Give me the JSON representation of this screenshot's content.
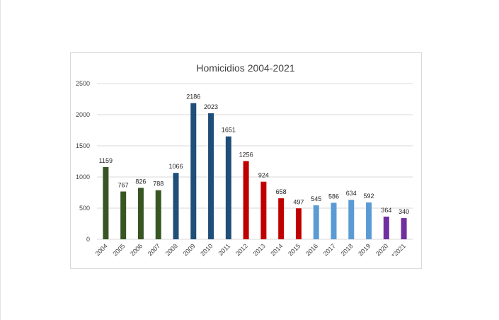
{
  "chart_data": {
    "type": "bar",
    "title": "Homicidios 2004-2021",
    "xlabel": "",
    "ylabel": "",
    "ylim": [
      0,
      2500
    ],
    "yticks": [
      0,
      500,
      1000,
      1500,
      2000,
      2500
    ],
    "grid": true,
    "legend": "none",
    "categories": [
      "2004",
      "2005",
      "2006",
      "2007",
      "2008",
      "2009",
      "2010",
      "2011",
      "2012",
      "2013",
      "2014",
      "2015",
      "2016",
      "2017",
      "2018",
      "2019",
      "2020",
      "*2021"
    ],
    "values": [
      1159,
      767,
      826,
      788,
      1066,
      2186,
      2023,
      1651,
      1256,
      924,
      658,
      497,
      545,
      586,
      634,
      592,
      364,
      340
    ],
    "bar_colors": [
      "#375623",
      "#375623",
      "#375623",
      "#375623",
      "#1f4e79",
      "#1f4e79",
      "#1f4e79",
      "#1f4e79",
      "#c00000",
      "#c00000",
      "#c00000",
      "#c00000",
      "#5b9bd5",
      "#5b9bd5",
      "#5b9bd5",
      "#5b9bd5",
      "#7030a0",
      "#7030a0"
    ],
    "data_labels": [
      "1159",
      "767",
      "826",
      "788",
      "1066",
      "2186",
      "2023",
      "1651",
      "1256",
      "924",
      "658",
      "497",
      "545",
      "586",
      "634",
      "592",
      "364",
      "340"
    ]
  }
}
